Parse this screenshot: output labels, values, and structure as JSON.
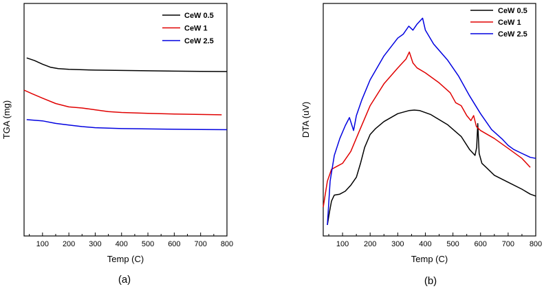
{
  "chart_data": [
    {
      "type": "line",
      "panel": "a",
      "caption": "(a)",
      "xlabel": "Temp (C)",
      "ylabel": "TGA (mg)",
      "xlim": [
        30,
        800
      ],
      "ylim": [
        0,
        100
      ],
      "x_ticks": [
        100,
        200,
        300,
        400,
        500,
        600,
        700,
        800
      ],
      "y_ticks": [],
      "legend_position": "top-right",
      "series": [
        {
          "name": "CeW 0.5",
          "color": "#000000",
          "x": [
            40,
            70,
            100,
            130,
            160,
            200,
            300,
            400,
            500,
            600,
            700,
            800
          ],
          "y": [
            83,
            81.5,
            79.5,
            77.8,
            77,
            76.6,
            76.2,
            76,
            75.8,
            75.6,
            75.5,
            75.4
          ]
        },
        {
          "name": "CeW 1",
          "color": "#e00000",
          "x": [
            30,
            60,
            100,
            150,
            200,
            250,
            300,
            350,
            400,
            500,
            600,
            700,
            780
          ],
          "y": [
            65,
            63,
            60.5,
            57.5,
            55.6,
            55,
            54,
            53,
            52.5,
            52,
            51.6,
            51.4,
            51.2
          ]
        },
        {
          "name": "CeW 2.5",
          "color": "#0000e0",
          "x": [
            40,
            100,
            150,
            200,
            250,
            300,
            400,
            500,
            600,
            700,
            800
          ],
          "y": [
            48.5,
            47.8,
            46.4,
            45.5,
            44.6,
            44,
            43.5,
            43.3,
            43.1,
            43,
            42.9
          ]
        }
      ]
    },
    {
      "type": "line",
      "panel": "b",
      "caption": "(b)",
      "xlabel": "Temp (C)",
      "ylabel": "DTA (uV)",
      "xlim": [
        30,
        800
      ],
      "ylim": [
        0,
        100
      ],
      "x_ticks": [
        100,
        200,
        300,
        400,
        500,
        600,
        700,
        800
      ],
      "y_ticks": [],
      "legend_position": "top-right",
      "series": [
        {
          "name": "CeW 0.5",
          "color": "#000000",
          "x": [
            45,
            52,
            60,
            70,
            90,
            110,
            130,
            150,
            165,
            180,
            200,
            220,
            250,
            300,
            340,
            360,
            380,
            420,
            480,
            530,
            560,
            580,
            586,
            590,
            595,
            605,
            620,
            650,
            700,
            750,
            780,
            800
          ],
          "y": [
            0,
            6,
            12,
            15,
            15.5,
            17,
            20,
            24,
            31,
            39,
            45.5,
            48.5,
            52,
            56,
            57.5,
            57.8,
            57.5,
            55.5,
            50.5,
            44.5,
            38,
            35,
            39,
            51,
            36,
            31,
            29,
            25,
            21.5,
            18,
            15.5,
            14.5
          ]
        },
        {
          "name": "CeW 1",
          "color": "#e00000",
          "x": [
            30,
            45,
            60,
            80,
            100,
            130,
            160,
            200,
            250,
            300,
            330,
            342,
            355,
            370,
            400,
            450,
            490,
            510,
            530,
            550,
            565,
            575,
            585,
            600,
            650,
            700,
            750,
            780
          ],
          "y": [
            9,
            22,
            28,
            29.5,
            31,
            37,
            47,
            60,
            71,
            79,
            83.5,
            87,
            81.5,
            79,
            76.5,
            71.5,
            66.5,
            61.5,
            60,
            55,
            52.5,
            55,
            49.5,
            47.5,
            43.5,
            38.5,
            33.5,
            29
          ]
        },
        {
          "name": "CeW 2.5",
          "color": "#0000e0",
          "x": [
            45,
            55,
            70,
            90,
            110,
            125,
            140,
            150,
            170,
            200,
            250,
            300,
            320,
            340,
            355,
            370,
            390,
            400,
            430,
            480,
            520,
            560,
            600,
            640,
            680,
            700,
            720,
            750,
            780,
            800
          ],
          "y": [
            0,
            22,
            35,
            43.5,
            50,
            54,
            47.5,
            55,
            63,
            73,
            85,
            94,
            96,
            100,
            98,
            101,
            104,
            98,
            91,
            83,
            75,
            65,
            56,
            48,
            43,
            40,
            38,
            36,
            34,
            33.5
          ]
        }
      ]
    }
  ]
}
